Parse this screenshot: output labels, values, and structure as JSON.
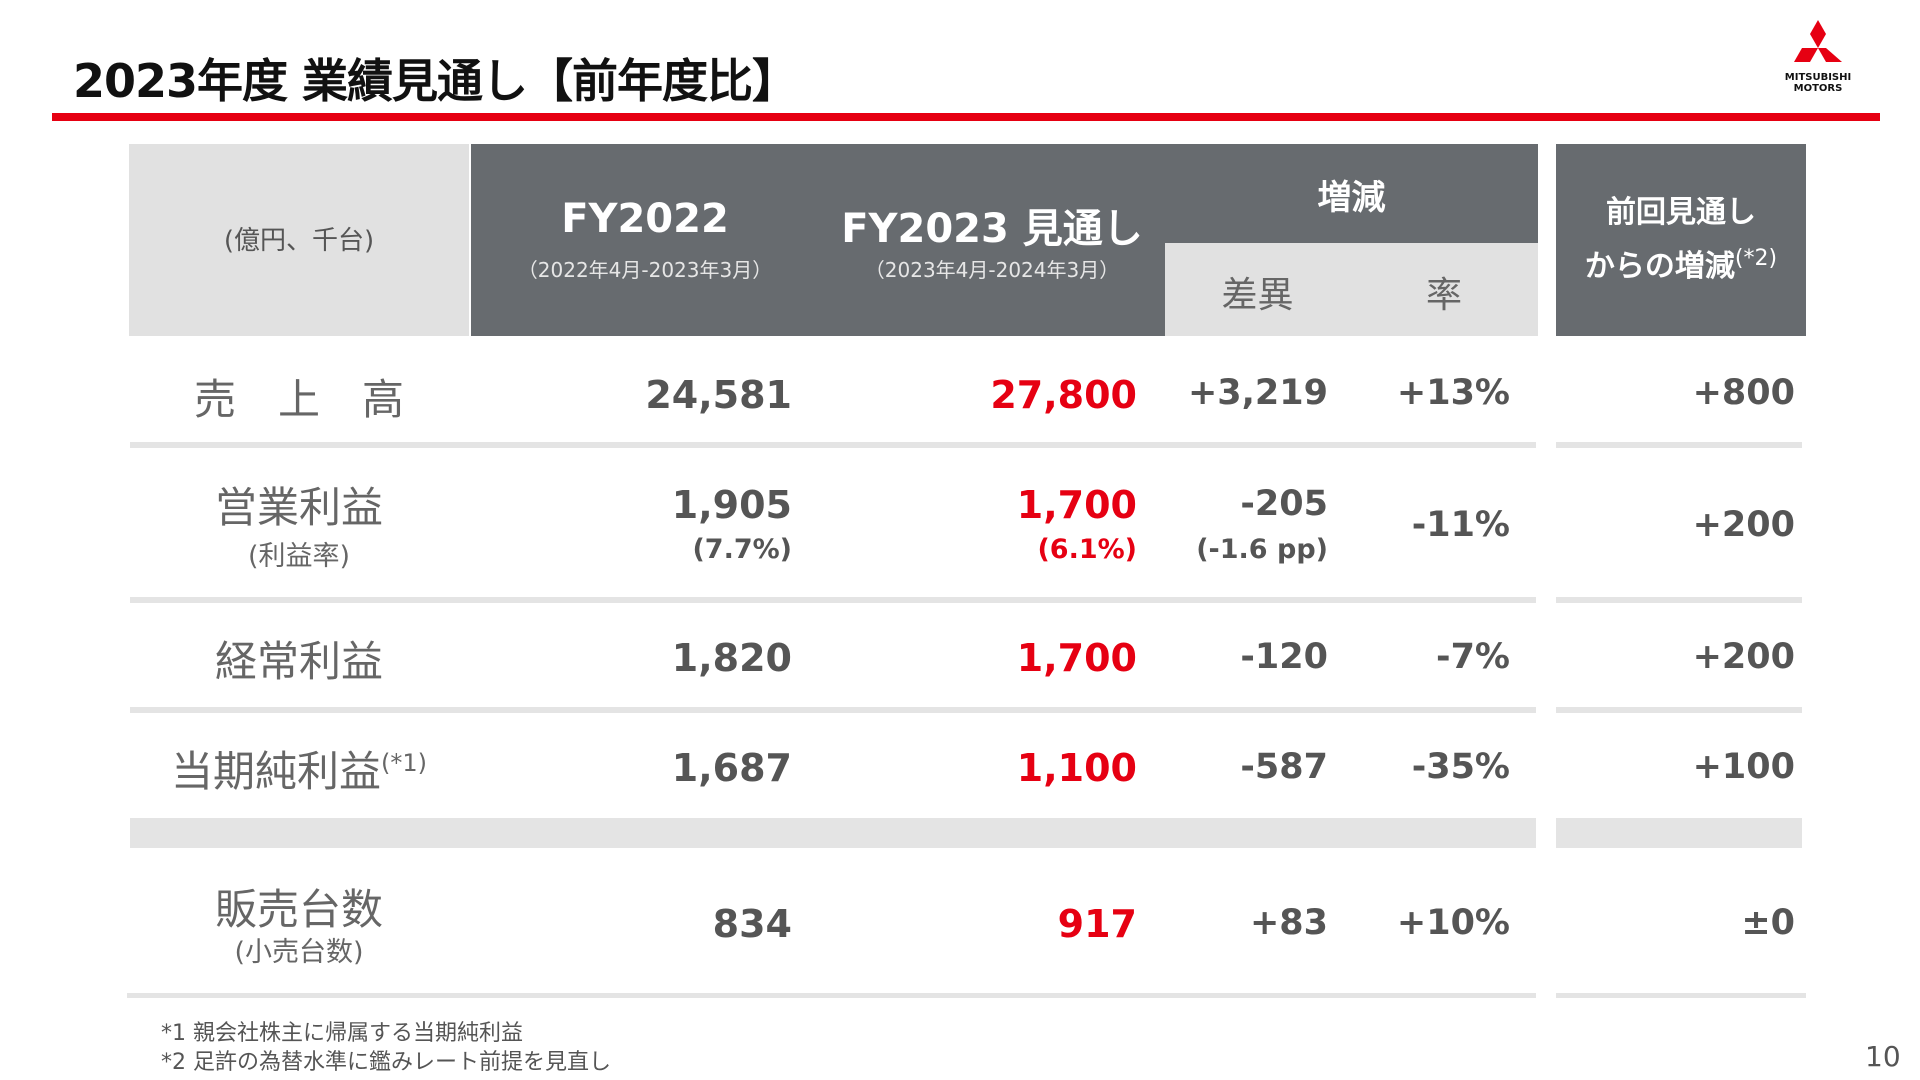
{
  "title": "2023年度 業績見通し【前年度比】",
  "logo": {
    "line1": "MITSUBISHI",
    "line2": "MOTORS",
    "icon": "three-diamonds-logo",
    "color": "#e60012"
  },
  "header": {
    "unit": "(億円、千台)",
    "fy2022": {
      "title": "FY2022",
      "period": "（2022年4月-2023年3月）"
    },
    "fy2023": {
      "title": "FY2023 見通し",
      "period": "（2023年4月-2024年3月）"
    },
    "change": {
      "title": "増減",
      "diff": "差異",
      "rate": "率"
    },
    "prev": {
      "line1": "前回見通し",
      "line2": "からの増減",
      "note": "(*2)"
    }
  },
  "rows": {
    "sales": {
      "label": "売　上　高",
      "fy2022": "24,581",
      "fy2023": "27,800",
      "diff": "+3,219",
      "rate": "+13%",
      "prev": "+800"
    },
    "op": {
      "label": "営業利益",
      "sub": "(利益率)",
      "fy2022": "1,905",
      "fy2022_sub": "(7.7%)",
      "fy2023": "1,700",
      "fy2023_sub": "(6.1%)",
      "diff": "-205",
      "diff_sub": "(-1.6 pp)",
      "rate": "-11%",
      "prev": "+200"
    },
    "ordinary": {
      "label": "経常利益",
      "fy2022": "1,820",
      "fy2023": "1,700",
      "diff": "-120",
      "rate": "-7%",
      "prev": "+200"
    },
    "net": {
      "label": "当期純利益",
      "note": "(*1)",
      "fy2022": "1,687",
      "fy2023": "1,100",
      "diff": "-587",
      "rate": "-35%",
      "prev": "+100"
    },
    "units": {
      "label": "販売台数",
      "sub": "(小売台数)",
      "fy2022": "834",
      "fy2023": "917",
      "diff": "+83",
      "rate": "+10%",
      "prev": "±0"
    }
  },
  "footnotes": {
    "f1": "*1 親会社株主に帰属する当期純利益",
    "f2": "*2 足許の為替水準に鑑みレート前提を見直し"
  },
  "page_number": "10",
  "colors": {
    "accent_red": "#e60012",
    "header_gray": "#676b6f",
    "light_gray": "#e1e1e1"
  }
}
